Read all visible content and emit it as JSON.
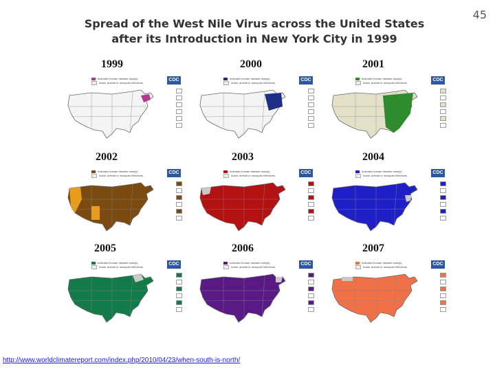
{
  "slide_number": "45",
  "title": {
    "line1": "Spread of the West Nile Virus across the United States",
    "line2": "after its Introduction in New York City in 1999"
  },
  "legend": {
    "line1": "Indicates human disease case(s).",
    "line2": "Avian, animal or mosquito infections."
  },
  "logo_text": "CDC",
  "panels": [
    {
      "year": "1999",
      "fill": "#f4f4f4",
      "accent": "#b5378e"
    },
    {
      "year": "2000",
      "fill": "#f4f4f4",
      "accent": "#1f2f86"
    },
    {
      "year": "2001",
      "fill": "#e4e0c8",
      "accent": "#2e8b2e"
    },
    {
      "year": "2002",
      "fill": "#7a4a10",
      "accent": "#e89c1e"
    },
    {
      "year": "2003",
      "fill": "#b41212",
      "accent": "#c9c9c9"
    },
    {
      "year": "2004",
      "fill": "#1f1fc8",
      "accent": "#c9c9c9"
    },
    {
      "year": "2005",
      "fill": "#137a4a",
      "accent": "#c9c9c9"
    },
    {
      "year": "2006",
      "fill": "#5a1a86",
      "accent": "#c9c9c9"
    },
    {
      "year": "2007",
      "fill": "#f07048",
      "accent": "#c9c9c9"
    }
  ],
  "source_link": "http://www.worldclimatereport.com/index.php/2010/04/23/when-south-is-north/"
}
